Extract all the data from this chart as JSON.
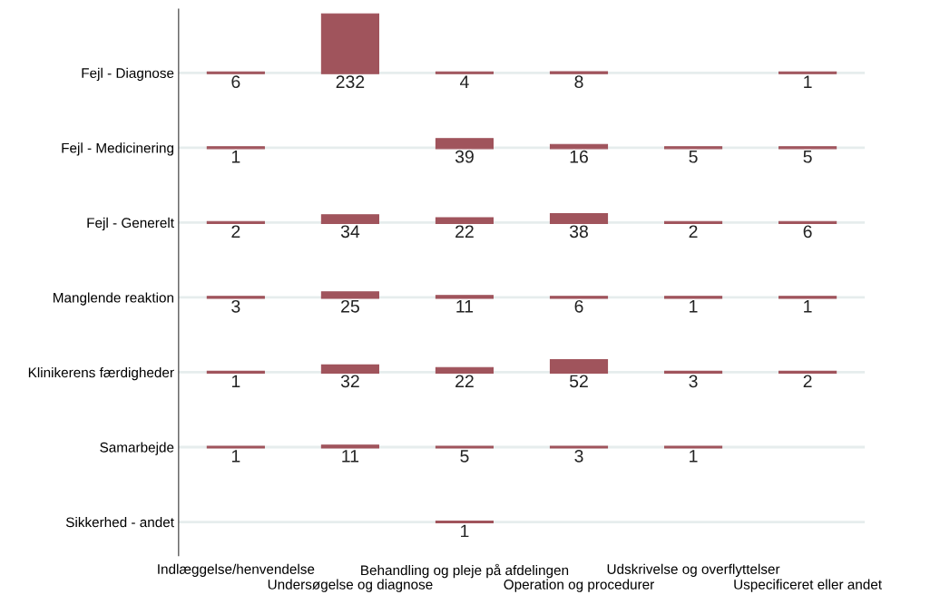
{
  "chart_data": {
    "type": "heatmap",
    "categories": [
      "Indlæggelse/henvendelse",
      "Undersøgelse og diagnose",
      "Behandling og pleje på afdelingen",
      "Operation og procedurer",
      "Udskrivelse og overflyttelser",
      "Uspecificeret eller andet"
    ],
    "y_categories": [
      "Fejl - Diagnose",
      "Fejl - Medicinering",
      "Fejl - Generelt",
      "Manglende reaktion",
      "Klinikerens færdigheder",
      "Samarbejde",
      "Sikkerhed - andet"
    ],
    "cells": [
      [
        6,
        232,
        4,
        8,
        null,
        1
      ],
      [
        1,
        null,
        39,
        16,
        5,
        5
      ],
      [
        2,
        34,
        22,
        38,
        2,
        6
      ],
      [
        3,
        25,
        11,
        6,
        1,
        1
      ],
      [
        1,
        32,
        22,
        52,
        3,
        2
      ],
      [
        1,
        11,
        5,
        3,
        1,
        null
      ],
      [
        null,
        null,
        1,
        null,
        null,
        null
      ]
    ],
    "color": "#a0545c",
    "grid": true,
    "data_labels": true
  }
}
